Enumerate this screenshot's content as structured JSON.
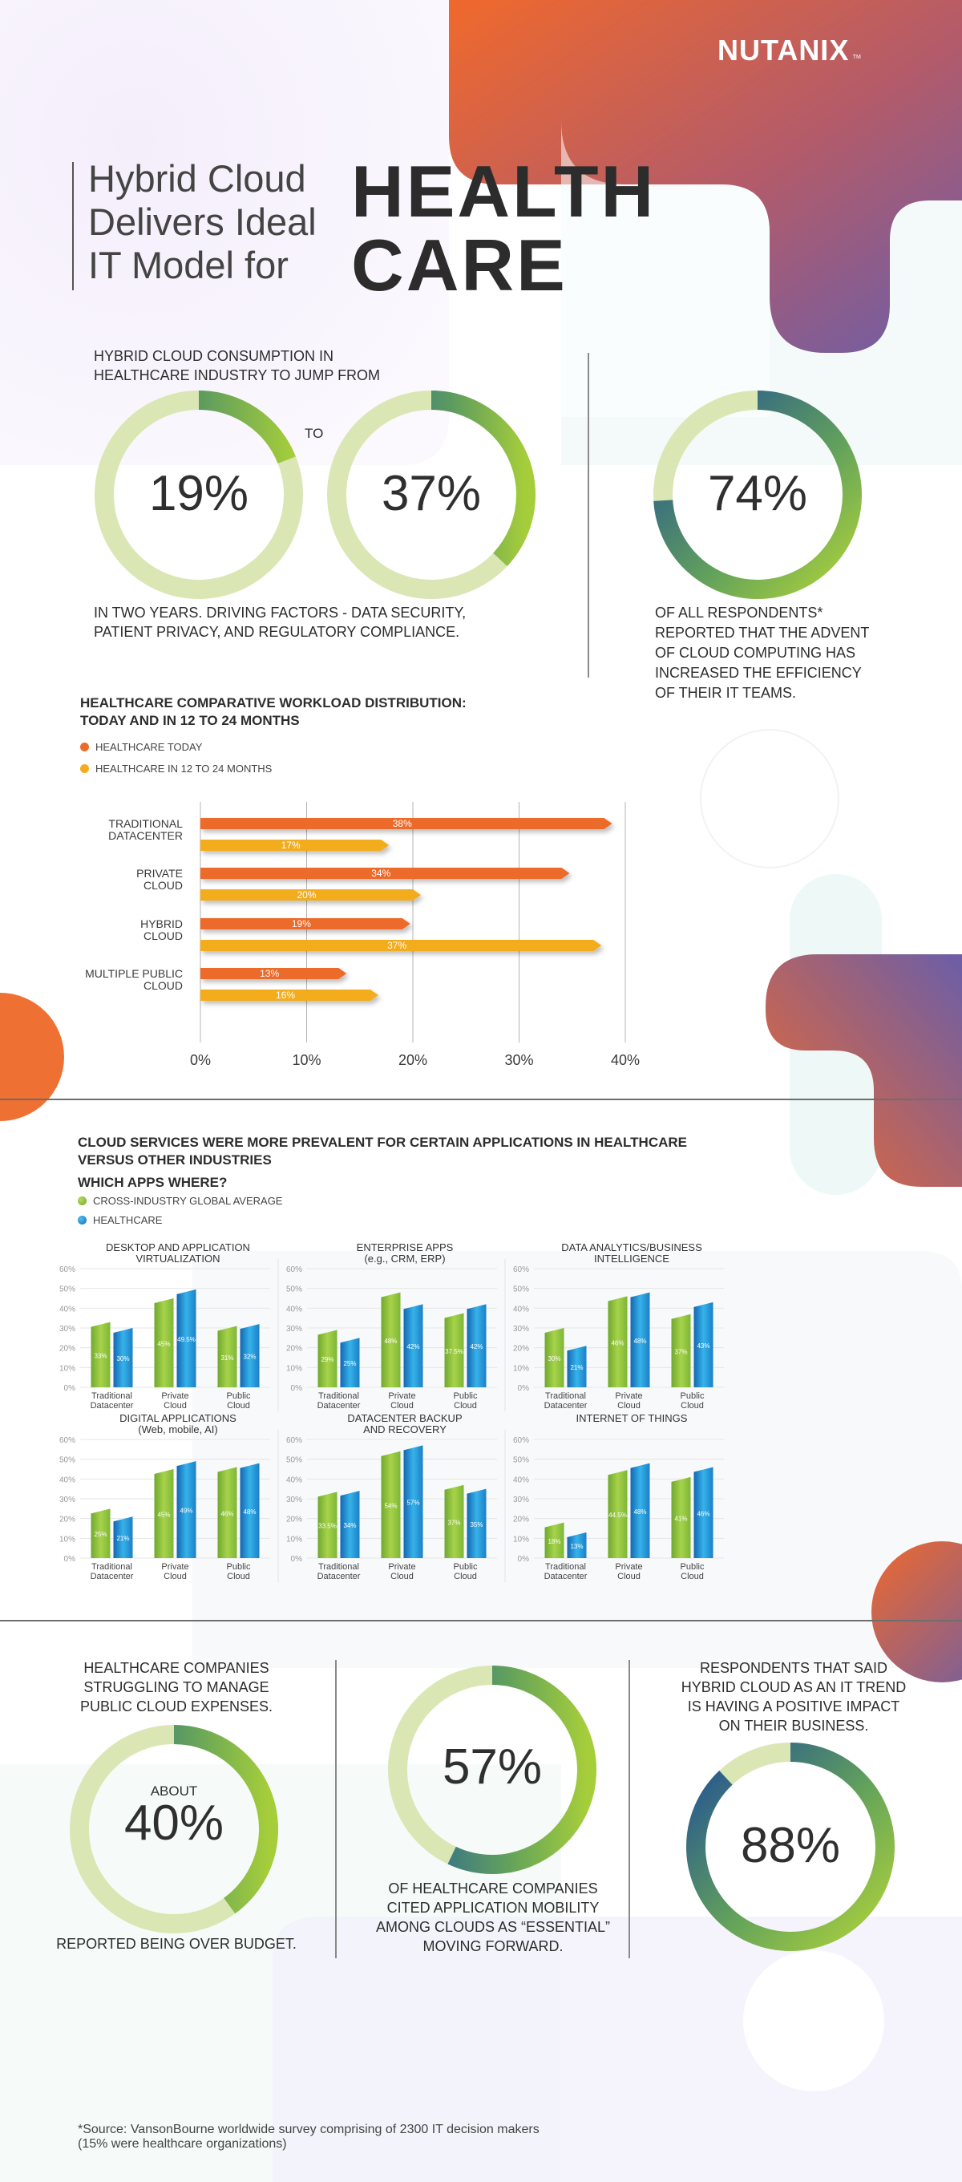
{
  "brand": {
    "logo_text": "NUTANIX"
  },
  "header": {
    "subtitle_lines": [
      "Hybrid Cloud",
      "Delivers Ideal",
      "IT Model for"
    ],
    "title_lines": [
      "HEALTH",
      "CARE"
    ]
  },
  "consumption": {
    "intro": [
      "HYBRID CLOUD CONSUMPTION IN",
      "HEALTHCARE INDUSTRY TO JUMP FROM"
    ],
    "from_value": "19%",
    "from_percent": 19,
    "to_label": "TO",
    "to_value": "37%",
    "to_percent": 37,
    "outro": [
      "IN TWO YEARS. DRIVING FACTORS - DATA SECURITY,",
      "PATIENT PRIVACY, AND REGULATORY COMPLIANCE."
    ]
  },
  "efficiency": {
    "value": "74%",
    "percent": 74,
    "text": [
      "OF ALL RESPONDENTS*",
      "REPORTED THAT THE ADVENT",
      "OF CLOUD COMPUTING HAS",
      "INCREASED THE EFFICIENCY",
      "OF THEIR IT TEAMS."
    ]
  },
  "workload": {
    "title": [
      "HEALTHCARE COMPARATIVE WORKLOAD DISTRIBUTION:",
      "TODAY AND IN 12 TO 24 MONTHS"
    ],
    "legend": [
      {
        "label": "HEALTHCARE TODAY",
        "color": "#ec6a2a"
      },
      {
        "label": "HEALTHCARE IN 12 TO 24 MONTHS",
        "color": "#f3ac1f"
      }
    ]
  },
  "chart_data": [
    {
      "type": "bar",
      "orientation": "horizontal",
      "categories": [
        [
          "TRADITIONAL",
          "DATACENTER"
        ],
        [
          "PRIVATE",
          "CLOUD"
        ],
        [
          "HYBRID",
          "CLOUD"
        ],
        [
          "MULTIPLE PUBLIC",
          "CLOUD"
        ]
      ],
      "series": [
        {
          "name": "HEALTHCARE TODAY",
          "values": [
            38,
            34,
            19,
            13
          ],
          "labels": [
            "38%",
            "34%",
            "19%",
            "13%"
          ],
          "color": "#ec6a2a"
        },
        {
          "name": "HEALTHCARE IN 12 TO 24 MONTHS",
          "values": [
            17,
            20,
            37,
            16
          ],
          "labels": [
            "17%",
            "20%",
            "37%",
            "16%"
          ],
          "color": "#f3ac1f"
        }
      ],
      "xlim": [
        0,
        40
      ],
      "xticks": [
        "0%",
        "10%",
        "20%",
        "30%",
        "40%"
      ],
      "grid": true
    },
    {
      "type": "bar",
      "title": [
        "DESKTOP AND APPLICATION",
        "VIRTUALIZATION"
      ],
      "categories": [
        [
          "Traditional",
          "Datacenter"
        ],
        [
          "Private",
          "Cloud"
        ],
        [
          "Public",
          "Cloud"
        ]
      ],
      "series": [
        {
          "name": "CROSS-INDUSTRY GLOBAL AVERAGE",
          "values": [
            33,
            45,
            31
          ],
          "labels": [
            "33%",
            "45%",
            "31%"
          ]
        },
        {
          "name": "HEALTHCARE",
          "values": [
            30,
            49.5,
            32
          ],
          "labels": [
            "30%",
            "49.5%",
            "32%"
          ]
        }
      ],
      "ylim": [
        0,
        60
      ],
      "yticks": [
        "0%",
        "10%",
        "20%",
        "30%",
        "40%",
        "50%",
        "60%"
      ]
    },
    {
      "type": "bar",
      "title": [
        "ENTERPRISE APPS",
        "(e.g., CRM, ERP)"
      ],
      "categories": [
        [
          "Traditional",
          "Datacenter"
        ],
        [
          "Private",
          "Cloud"
        ],
        [
          "Public",
          "Cloud"
        ]
      ],
      "series": [
        {
          "name": "CROSS-INDUSTRY GLOBAL AVERAGE",
          "values": [
            29,
            48,
            37.5
          ],
          "labels": [
            "29%",
            "48%",
            "37.5%"
          ]
        },
        {
          "name": "HEALTHCARE",
          "values": [
            25,
            42,
            42
          ],
          "labels": [
            "25%",
            "42%",
            "42%"
          ]
        }
      ],
      "ylim": [
        0,
        60
      ],
      "yticks": [
        "0%",
        "10%",
        "20%",
        "30%",
        "40%",
        "50%",
        "60%"
      ]
    },
    {
      "type": "bar",
      "title": [
        "DATA ANALYTICS/BUSINESS",
        "INTELLIGENCE"
      ],
      "categories": [
        [
          "Traditional",
          "Datacenter"
        ],
        [
          "Private",
          "Cloud"
        ],
        [
          "Public",
          "Cloud"
        ]
      ],
      "series": [
        {
          "name": "CROSS-INDUSTRY GLOBAL AVERAGE",
          "values": [
            30,
            46,
            37
          ],
          "labels": [
            "30%",
            "46%",
            "37%"
          ]
        },
        {
          "name": "HEALTHCARE",
          "values": [
            21,
            48,
            43
          ],
          "labels": [
            "21%",
            "48%",
            "43%"
          ]
        }
      ],
      "ylim": [
        0,
        60
      ],
      "yticks": [
        "0%",
        "10%",
        "20%",
        "30%",
        "40%",
        "50%",
        "60%"
      ]
    },
    {
      "type": "bar",
      "title": [
        "DIGITAL APPLICATIONS",
        "(Web, mobile, AI)"
      ],
      "categories": [
        [
          "Traditional",
          "Datacenter"
        ],
        [
          "Private",
          "Cloud"
        ],
        [
          "Public",
          "Cloud"
        ]
      ],
      "series": [
        {
          "name": "CROSS-INDUSTRY GLOBAL AVERAGE",
          "values": [
            25,
            45,
            46
          ],
          "labels": [
            "25%",
            "45%",
            "46%"
          ]
        },
        {
          "name": "HEALTHCARE",
          "values": [
            21,
            49,
            48
          ],
          "labels": [
            "21%",
            "49%",
            "48%"
          ]
        }
      ],
      "ylim": [
        0,
        60
      ],
      "yticks": [
        "0%",
        "10%",
        "20%",
        "30%",
        "40%",
        "50%",
        "60%"
      ]
    },
    {
      "type": "bar",
      "title": [
        "DATACENTER BACKUP",
        "AND RECOVERY"
      ],
      "categories": [
        [
          "Traditional",
          "Datacenter"
        ],
        [
          "Private",
          "Cloud"
        ],
        [
          "Public",
          "Cloud"
        ]
      ],
      "series": [
        {
          "name": "CROSS-INDUSTRY GLOBAL AVERAGE",
          "values": [
            33.5,
            54,
            37
          ],
          "labels": [
            "33.5%",
            "54%",
            "37%"
          ]
        },
        {
          "name": "HEALTHCARE",
          "values": [
            34,
            57,
            35
          ],
          "labels": [
            "34%",
            "57%",
            "35%"
          ]
        }
      ],
      "ylim": [
        0,
        60
      ],
      "yticks": [
        "0%",
        "10%",
        "20%",
        "30%",
        "40%",
        "50%",
        "60%"
      ]
    },
    {
      "type": "bar",
      "title": [
        "INTERNET OF THINGS"
      ],
      "categories": [
        [
          "Traditional",
          "Datacenter"
        ],
        [
          "Private",
          "Cloud"
        ],
        [
          "Public",
          "Cloud"
        ]
      ],
      "series": [
        {
          "name": "CROSS-INDUSTRY GLOBAL AVERAGE",
          "values": [
            18,
            44.5,
            41
          ],
          "labels": [
            "18%",
            "44.5%",
            "41%"
          ]
        },
        {
          "name": "HEALTHCARE",
          "values": [
            13,
            48,
            46
          ],
          "labels": [
            "13%",
            "48%",
            "46%"
          ]
        }
      ],
      "ylim": [
        0,
        60
      ],
      "yticks": [
        "0%",
        "10%",
        "20%",
        "30%",
        "40%",
        "50%",
        "60%"
      ]
    }
  ],
  "apps": {
    "title": [
      "CLOUD SERVICES WERE MORE PREVALENT FOR CERTAIN APPLICATIONS IN HEALTHCARE",
      "VERSUS OTHER INDUSTRIES"
    ],
    "subtitle": "WHICH APPS WHERE?",
    "legend": [
      {
        "label": "CROSS-INDUSTRY GLOBAL AVERAGE",
        "color": "#8dc63f"
      },
      {
        "label": "HEALTHCARE",
        "color": "#1a96d4"
      }
    ]
  },
  "expenses": {
    "intro": [
      "HEALTHCARE COMPANIES",
      "STRUGGLING TO MANAGE",
      "PUBLIC CLOUD EXPENSES."
    ],
    "prefix": "ABOUT",
    "value": "40%",
    "percent": 40,
    "outro": "REPORTED BEING OVER BUDGET."
  },
  "mobility": {
    "value": "57%",
    "percent": 57,
    "text": [
      "OF HEALTHCARE COMPANIES",
      "CITED APPLICATION MOBILITY",
      "AMONG CLOUDS AS “ESSENTIAL”",
      "MOVING FORWARD."
    ]
  },
  "trend": {
    "intro": [
      "RESPONDENTS THAT SAID",
      "HYBRID CLOUD AS AN IT TREND",
      "IS HAVING A POSITIVE  IMPACT",
      "ON THEIR BUSINESS."
    ],
    "value": "88%",
    "percent": 88
  },
  "footnote": [
    "*Source: VansonBourne worldwide survey comprising of 2300 IT decision makers",
    "(15% were healthcare organizations)"
  ]
}
